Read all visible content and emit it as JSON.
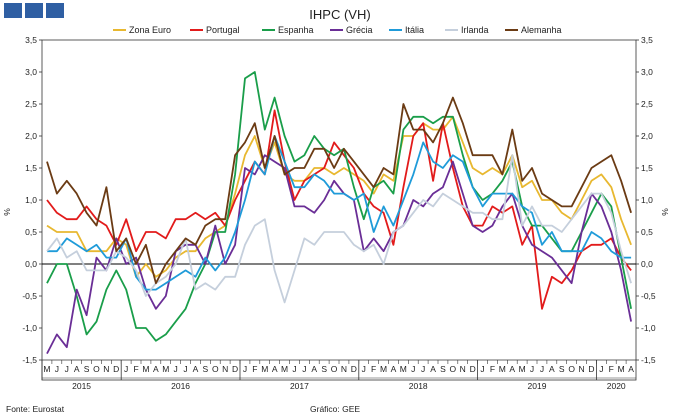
{
  "header": {
    "logo_name": "gee-logo",
    "logo_color": "#2f5fa3"
  },
  "footer": {
    "source": "Fonte: Eurostat",
    "credit": "Gráfico: GEE"
  },
  "chart_data": {
    "type": "line",
    "title": "IHPC (VH)",
    "ylabel_left": "%",
    "ylabel_right": "%",
    "ylim": [
      -1.5,
      3.5
    ],
    "yticks": [
      "-1,5",
      "-1,0",
      "-0,5",
      "0,0",
      "0,5",
      "1,0",
      "1,5",
      "2,0",
      "2,5",
      "3,0",
      "3,5"
    ],
    "ytick_values": [
      -1.5,
      -1.0,
      -0.5,
      0.0,
      0.5,
      1.0,
      1.5,
      2.0,
      2.5,
      3.0,
      3.5
    ],
    "legend_position": "top",
    "months": [
      "M",
      "J",
      "J",
      "A",
      "S",
      "O",
      "N",
      "D",
      "J",
      "F",
      "M",
      "A",
      "M",
      "J",
      "J",
      "A",
      "S",
      "O",
      "N",
      "D",
      "J",
      "F",
      "M",
      "A",
      "M",
      "J",
      "J",
      "A",
      "S",
      "O",
      "N",
      "D",
      "J",
      "F",
      "M",
      "A",
      "M",
      "J",
      "J",
      "A",
      "S",
      "O",
      "N",
      "D",
      "J",
      "F",
      "M",
      "A",
      "M",
      "J",
      "J",
      "A",
      "S",
      "O",
      "N",
      "D",
      "J",
      "F",
      "M",
      "A"
    ],
    "years": [
      {
        "label": "2015",
        "start": 0,
        "end": 8
      },
      {
        "label": "2016",
        "start": 8,
        "end": 20
      },
      {
        "label": "2017",
        "start": 20,
        "end": 32
      },
      {
        "label": "2018",
        "start": 32,
        "end": 44
      },
      {
        "label": "2019",
        "start": 44,
        "end": 56
      },
      {
        "label": "2020",
        "start": 56,
        "end": 60
      }
    ],
    "series": [
      {
        "name": "Zona Euro",
        "color": "#e8b830",
        "values": [
          0.6,
          0.5,
          0.5,
          0.5,
          0.2,
          0.2,
          0.2,
          0.4,
          0.3,
          -0.2,
          0.0,
          -0.2,
          -0.1,
          0.1,
          0.2,
          0.2,
          0.4,
          0.5,
          0.6,
          1.1,
          1.7,
          2.0,
          1.5,
          1.9,
          1.4,
          1.3,
          1.3,
          1.5,
          1.5,
          1.4,
          1.5,
          1.4,
          1.3,
          1.1,
          1.4,
          1.3,
          2.0,
          2.0,
          2.2,
          2.1,
          2.1,
          2.3,
          1.9,
          1.5,
          1.4,
          1.5,
          1.4,
          1.7,
          1.2,
          1.3,
          1.0,
          1.0,
          0.8,
          0.7,
          1.0,
          1.3,
          1.4,
          1.2,
          0.7,
          0.3
        ]
      },
      {
        "name": "Portugal",
        "color": "#e21b1b",
        "values": [
          1.0,
          0.8,
          0.7,
          0.7,
          0.9,
          0.7,
          0.6,
          0.3,
          0.7,
          0.2,
          0.5,
          0.5,
          0.4,
          0.7,
          0.7,
          0.8,
          0.7,
          0.8,
          0.6,
          1.0,
          1.3,
          1.6,
          1.4,
          2.4,
          1.6,
          1.0,
          1.3,
          1.4,
          1.5,
          1.9,
          1.7,
          1.5,
          1.1,
          0.9,
          0.8,
          0.3,
          1.2,
          2.0,
          2.2,
          1.3,
          2.2,
          1.5,
          0.9,
          0.6,
          0.6,
          0.9,
          0.8,
          0.9,
          0.3,
          0.6,
          -0.7,
          -0.2,
          -0.3,
          -0.1,
          0.2,
          0.3,
          0.3,
          0.4,
          0.1,
          -0.1
        ]
      },
      {
        "name": "Espanha",
        "color": "#1a9e4a",
        "values": [
          -0.3,
          0.0,
          0.0,
          -0.5,
          -1.1,
          -0.9,
          -0.4,
          -0.1,
          -0.4,
          -1.0,
          -1.0,
          -1.2,
          -1.1,
          -0.9,
          -0.7,
          -0.3,
          0.0,
          0.5,
          0.5,
          1.4,
          2.9,
          3.0,
          2.1,
          2.6,
          2.0,
          1.6,
          1.7,
          2.0,
          1.8,
          1.7,
          1.8,
          1.2,
          0.7,
          1.2,
          1.3,
          1.1,
          2.1,
          2.3,
          2.3,
          2.2,
          2.3,
          2.3,
          1.7,
          1.2,
          1.0,
          1.1,
          1.3,
          1.6,
          0.9,
          0.6,
          0.6,
          0.4,
          0.2,
          0.2,
          0.5,
          0.8,
          1.1,
          0.9,
          0.1,
          -0.7
        ]
      },
      {
        "name": "Grécia",
        "color": "#6a2e96",
        "values": [
          -1.4,
          -1.1,
          -1.3,
          -0.4,
          -0.8,
          0.1,
          -0.1,
          0.4,
          0.0,
          0.1,
          -0.4,
          -0.7,
          -0.5,
          0.2,
          0.3,
          0.3,
          0.0,
          0.6,
          0.0,
          0.3,
          1.5,
          1.4,
          1.7,
          1.6,
          1.5,
          0.9,
          0.9,
          0.8,
          1.0,
          1.3,
          1.1,
          1.0,
          0.2,
          0.4,
          0.2,
          0.5,
          0.6,
          1.0,
          0.9,
          1.1,
          1.2,
          1.6,
          1.1,
          0.6,
          0.5,
          0.6,
          0.9,
          1.1,
          0.6,
          0.3,
          0.2,
          0.1,
          -0.1,
          -0.3,
          0.5,
          1.1,
          0.9,
          0.5,
          -0.1,
          -0.9
        ]
      },
      {
        "name": "Itália",
        "color": "#1f9bd9",
        "values": [
          0.2,
          0.2,
          0.4,
          0.3,
          0.2,
          0.3,
          0.1,
          0.1,
          0.4,
          -0.2,
          -0.4,
          -0.4,
          -0.3,
          -0.2,
          -0.1,
          -0.2,
          0.1,
          -0.1,
          0.1,
          0.5,
          1.0,
          1.6,
          1.4,
          2.0,
          1.6,
          1.2,
          1.2,
          1.4,
          1.3,
          1.1,
          1.1,
          1.0,
          1.1,
          0.5,
          0.9,
          0.6,
          1.0,
          1.4,
          1.9,
          1.6,
          1.5,
          1.7,
          1.6,
          1.2,
          0.9,
          1.1,
          1.1,
          1.1,
          0.9,
          0.8,
          0.3,
          0.5,
          0.2,
          0.2,
          0.2,
          0.5,
          0.4,
          0.2,
          0.1,
          0.1
        ]
      },
      {
        "name": "Irlanda",
        "color": "#c5cfdc",
        "values": [
          0.2,
          0.4,
          0.1,
          0.2,
          -0.1,
          -0.1,
          -0.1,
          0.2,
          0.1,
          -0.1,
          -0.5,
          -0.3,
          -0.2,
          0.0,
          0.4,
          -0.4,
          -0.3,
          -0.4,
          -0.2,
          -0.2,
          0.3,
          0.6,
          0.7,
          -0.1,
          -0.6,
          -0.1,
          0.4,
          0.3,
          0.5,
          0.5,
          0.5,
          0.3,
          0.2,
          0.3,
          0.0,
          0.5,
          0.6,
          0.8,
          1.0,
          0.9,
          1.1,
          1.0,
          0.9,
          0.8,
          0.8,
          0.7,
          0.7,
          1.7,
          0.6,
          0.9,
          0.6,
          0.6,
          0.5,
          0.7,
          0.9,
          1.1,
          1.1,
          0.8,
          0.2,
          -0.3
        ]
      },
      {
        "name": "Alemanha",
        "color": "#6b3b14",
        "values": [
          1.6,
          1.1,
          1.3,
          1.1,
          0.8,
          0.6,
          1.2,
          0.2,
          0.4,
          0.0,
          0.3,
          -0.3,
          0.0,
          0.2,
          0.4,
          0.3,
          0.6,
          0.7,
          0.7,
          1.7,
          1.9,
          2.2,
          1.5,
          2.0,
          1.4,
          1.5,
          1.5,
          1.8,
          1.8,
          1.5,
          1.8,
          1.6,
          1.4,
          1.2,
          1.5,
          1.4,
          2.5,
          2.1,
          2.1,
          1.9,
          2.2,
          2.6,
          2.2,
          1.7,
          1.7,
          1.7,
          1.4,
          2.1,
          1.3,
          1.5,
          1.1,
          1.0,
          0.9,
          0.9,
          1.2,
          1.5,
          1.6,
          1.7,
          1.3,
          0.8
        ]
      }
    ]
  }
}
